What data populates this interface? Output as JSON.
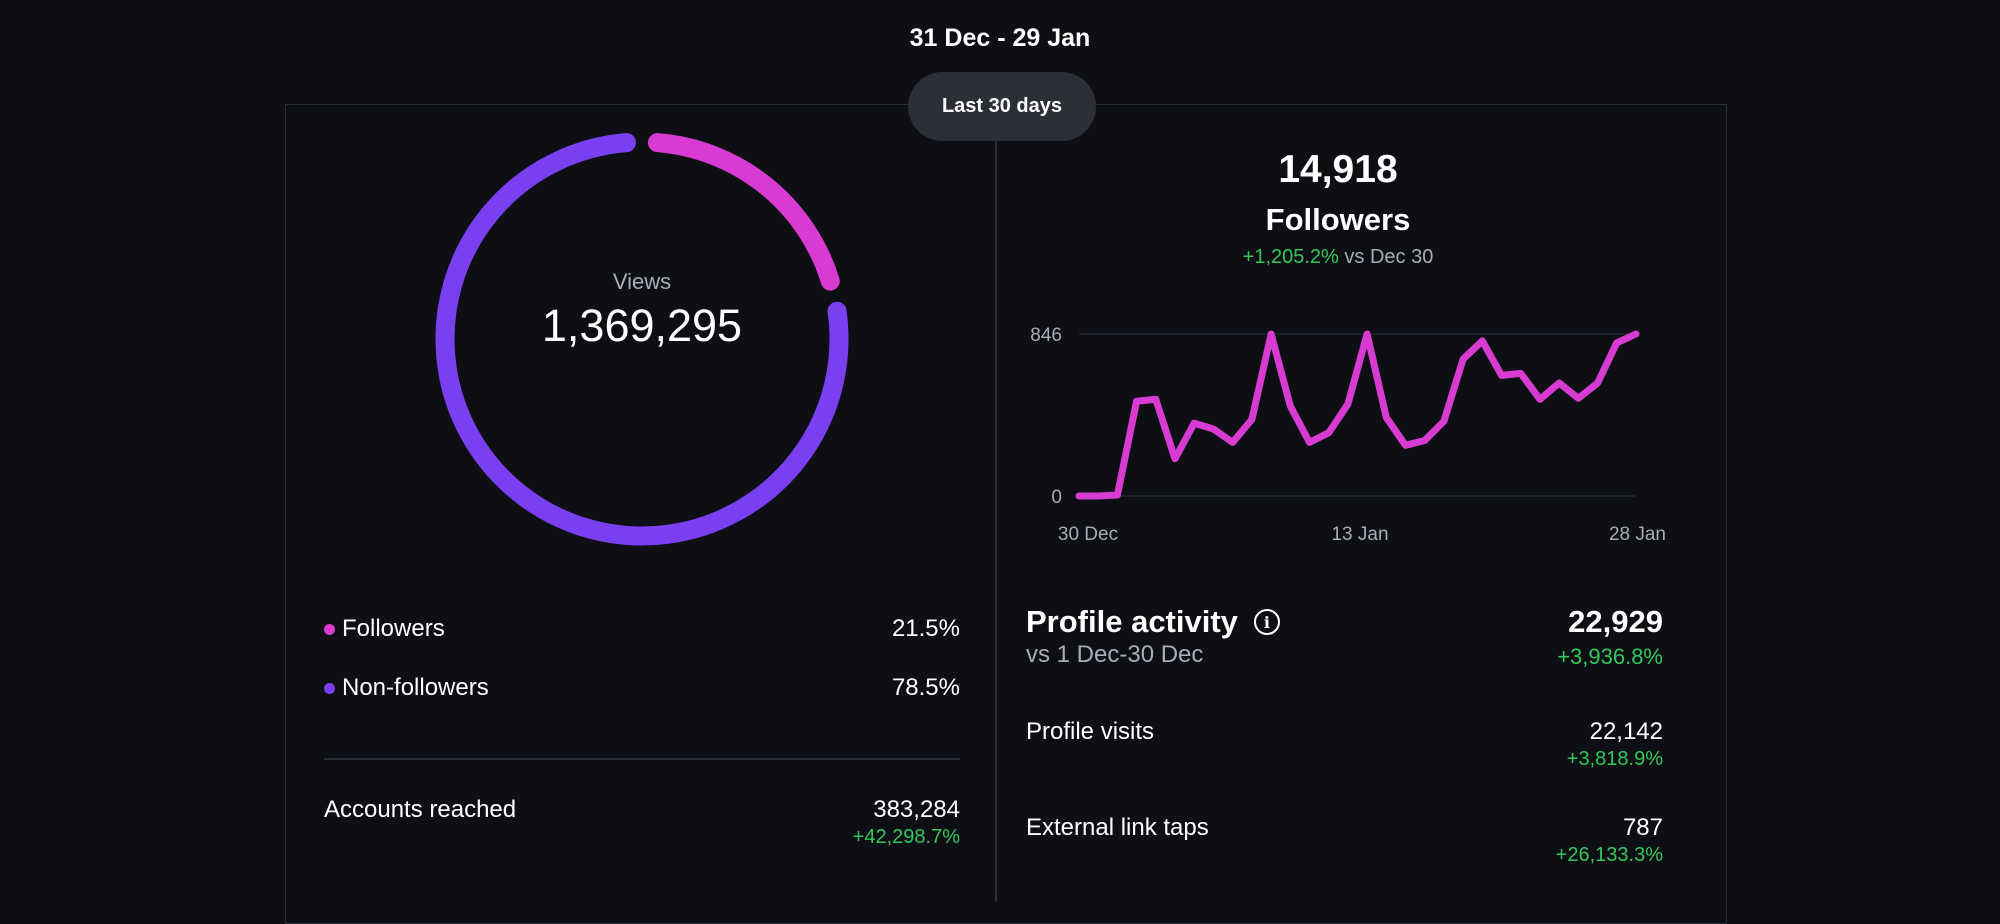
{
  "header": {
    "date_range": "31 Dec - 29 Jan",
    "period_button": "Last 30 days"
  },
  "colors": {
    "followers": "#d83bd2",
    "non_followers": "#7b3ff2",
    "positive": "#34c759",
    "background": "#0d0f14"
  },
  "views": {
    "label": "Views",
    "value": "1,369,295",
    "breakdown": [
      {
        "label": "Followers",
        "value": "21.5%",
        "fraction": 0.215,
        "color": "#d83bd2"
      },
      {
        "label": "Non-followers",
        "value": "78.5%",
        "fraction": 0.785,
        "color": "#7b3ff2"
      }
    ]
  },
  "accounts_reached": {
    "label": "Accounts reached",
    "value": "383,284",
    "change": "+42,298.7%"
  },
  "followers": {
    "value": "14,918",
    "title": "Followers",
    "change": "+1,205.2%",
    "compare": "vs Dec 30"
  },
  "chart_data": {
    "type": "line",
    "x_labels": [
      "30 Dec",
      "13 Jan",
      "28 Jan"
    ],
    "y_ticks": [
      "846",
      "0"
    ],
    "ylim": [
      0,
      846
    ],
    "series": [
      {
        "color": "#d83bd2",
        "values": [
          0,
          0,
          5,
          495,
          505,
          195,
          380,
          350,
          280,
          400,
          846,
          470,
          280,
          330,
          480,
          846,
          410,
          265,
          290,
          390,
          715,
          810,
          630,
          640,
          505,
          590,
          510,
          590,
          800,
          846
        ]
      }
    ]
  },
  "profile_activity": {
    "title": "Profile activity",
    "subtitle": "vs 1 Dec-30 Dec",
    "total": "22,929",
    "total_change": "+3,936.8%",
    "rows": [
      {
        "label": "Profile visits",
        "value": "22,142",
        "change": "+3,818.9%"
      },
      {
        "label": "External link taps",
        "value": "787",
        "change": "+26,133.3%"
      }
    ]
  }
}
